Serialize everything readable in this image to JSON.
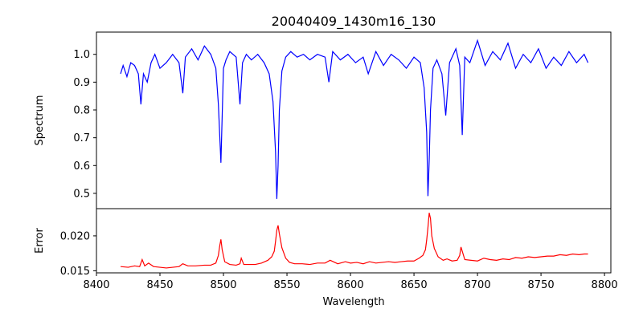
{
  "chart_data": [
    {
      "panel": "top",
      "type": "line",
      "title": "20040409_1430m16_130",
      "xlabel": "",
      "ylabel": "Spectrum",
      "xlim": [
        8400,
        8805
      ],
      "ylim": [
        0.445,
        1.08
      ],
      "yticks": [
        0.5,
        0.6,
        0.7,
        0.8,
        0.9,
        1.0
      ],
      "ytick_labels": [
        "0.5",
        "0.6",
        "0.7",
        "0.8",
        "0.9",
        "1.0"
      ],
      "grid": false,
      "series": [
        {
          "color": "#0000ff",
          "x": [
            8419,
            8421,
            8424,
            8427,
            8430,
            8433,
            8435,
            8437,
            8440,
            8443,
            8446,
            8450,
            8455,
            8460,
            8465,
            8468,
            8470,
            8475,
            8480,
            8485,
            8490,
            8494,
            8496,
            8498,
            8500,
            8502,
            8505,
            8510,
            8513,
            8515,
            8518,
            8522,
            8527,
            8532,
            8536,
            8539,
            8541,
            8542,
            8543,
            8544,
            8546,
            8549,
            8553,
            8558,
            8563,
            8568,
            8574,
            8580,
            8583,
            8586,
            8592,
            8598,
            8604,
            8610,
            8614,
            8620,
            8626,
            8632,
            8638,
            8644,
            8650,
            8655,
            8658,
            8660,
            8661,
            8662,
            8663,
            8665,
            8668,
            8672,
            8675,
            8678,
            8683,
            8686,
            8688,
            8690,
            8694,
            8700,
            8706,
            8712,
            8718,
            8724,
            8730,
            8736,
            8742,
            8748,
            8754,
            8760,
            8766,
            8772,
            8778,
            8784,
            8787
          ],
          "values": [
            0.93,
            0.96,
            0.92,
            0.97,
            0.96,
            0.93,
            0.82,
            0.93,
            0.9,
            0.97,
            1.0,
            0.95,
            0.97,
            1.0,
            0.97,
            0.86,
            0.99,
            1.02,
            0.98,
            1.03,
            1.0,
            0.95,
            0.82,
            0.61,
            0.95,
            0.98,
            1.01,
            0.99,
            0.82,
            0.97,
            1.0,
            0.98,
            1.0,
            0.97,
            0.93,
            0.83,
            0.65,
            0.48,
            0.6,
            0.8,
            0.94,
            0.99,
            1.01,
            0.99,
            1.0,
            0.98,
            1.0,
            0.99,
            0.9,
            1.01,
            0.98,
            1.0,
            0.97,
            0.99,
            0.93,
            1.01,
            0.96,
            1.0,
            0.98,
            0.95,
            0.99,
            0.97,
            0.88,
            0.72,
            0.49,
            0.62,
            0.8,
            0.95,
            0.98,
            0.93,
            0.78,
            0.97,
            1.02,
            0.96,
            0.71,
            0.99,
            0.97,
            1.05,
            0.96,
            1.01,
            0.98,
            1.04,
            0.95,
            1.0,
            0.97,
            1.02,
            0.95,
            0.99,
            0.96,
            1.01,
            0.97,
            1.0,
            0.97
          ]
        }
      ]
    },
    {
      "panel": "bottom",
      "type": "line",
      "xlabel": "Wavelength",
      "ylabel": "Error",
      "xlim": [
        8400,
        8805
      ],
      "ylim": [
        0.0147,
        0.0239
      ],
      "xticks": [
        8400,
        8450,
        8500,
        8550,
        8600,
        8650,
        8700,
        8750,
        8800
      ],
      "xtick_labels": [
        "8400",
        "8450",
        "8500",
        "8550",
        "8600",
        "8650",
        "8700",
        "8750",
        "8800"
      ],
      "yticks": [
        0.015,
        0.02
      ],
      "ytick_labels": [
        "0.015",
        "0.020"
      ],
      "grid": false,
      "series": [
        {
          "color": "#ff0000",
          "x": [
            8419,
            8425,
            8430,
            8434,
            8436,
            8438,
            8441,
            8445,
            8450,
            8455,
            8460,
            8465,
            8468,
            8472,
            8478,
            8485,
            8490,
            8494,
            8496,
            8497,
            8498,
            8499,
            8501,
            8505,
            8510,
            8513,
            8514,
            8516,
            8520,
            8525,
            8530,
            8535,
            8538,
            8540,
            8541,
            8542,
            8543,
            8544,
            8546,
            8549,
            8552,
            8556,
            8562,
            8568,
            8574,
            8580,
            8584,
            8590,
            8596,
            8600,
            8605,
            8610,
            8615,
            8620,
            8625,
            8630,
            8635,
            8640,
            8645,
            8650,
            8654,
            8657,
            8659,
            8660,
            8661,
            8662,
            8663,
            8664,
            8666,
            8669,
            8673,
            8676,
            8680,
            8684,
            8686,
            8687,
            8688,
            8690,
            8695,
            8700,
            8705,
            8710,
            8715,
            8720,
            8725,
            8730,
            8735,
            8740,
            8745,
            8750,
            8755,
            8760,
            8765,
            8770,
            8775,
            8780,
            8784,
            8787
          ],
          "values": [
            0.0156,
            0.0155,
            0.0157,
            0.0156,
            0.0166,
            0.0157,
            0.0161,
            0.0156,
            0.0155,
            0.0154,
            0.0155,
            0.0156,
            0.016,
            0.0157,
            0.0157,
            0.0158,
            0.0158,
            0.0161,
            0.0172,
            0.0185,
            0.0195,
            0.018,
            0.0163,
            0.0159,
            0.0158,
            0.016,
            0.0168,
            0.0159,
            0.0159,
            0.0159,
            0.0161,
            0.0165,
            0.017,
            0.0178,
            0.0192,
            0.0208,
            0.0215,
            0.0203,
            0.0183,
            0.0168,
            0.0162,
            0.016,
            0.016,
            0.0159,
            0.0161,
            0.0161,
            0.0165,
            0.016,
            0.0163,
            0.0161,
            0.0162,
            0.016,
            0.0163,
            0.0161,
            0.0162,
            0.0163,
            0.0162,
            0.0163,
            0.0164,
            0.0164,
            0.0168,
            0.0172,
            0.018,
            0.0194,
            0.0212,
            0.0233,
            0.0225,
            0.02,
            0.0182,
            0.017,
            0.0165,
            0.0167,
            0.0164,
            0.0165,
            0.0172,
            0.0184,
            0.0178,
            0.0166,
            0.0165,
            0.0164,
            0.0168,
            0.0166,
            0.0165,
            0.0167,
            0.0166,
            0.0169,
            0.0168,
            0.017,
            0.0169,
            0.017,
            0.0171,
            0.0171,
            0.0173,
            0.0172,
            0.0174,
            0.0173,
            0.0174,
            0.0174
          ]
        }
      ]
    }
  ]
}
